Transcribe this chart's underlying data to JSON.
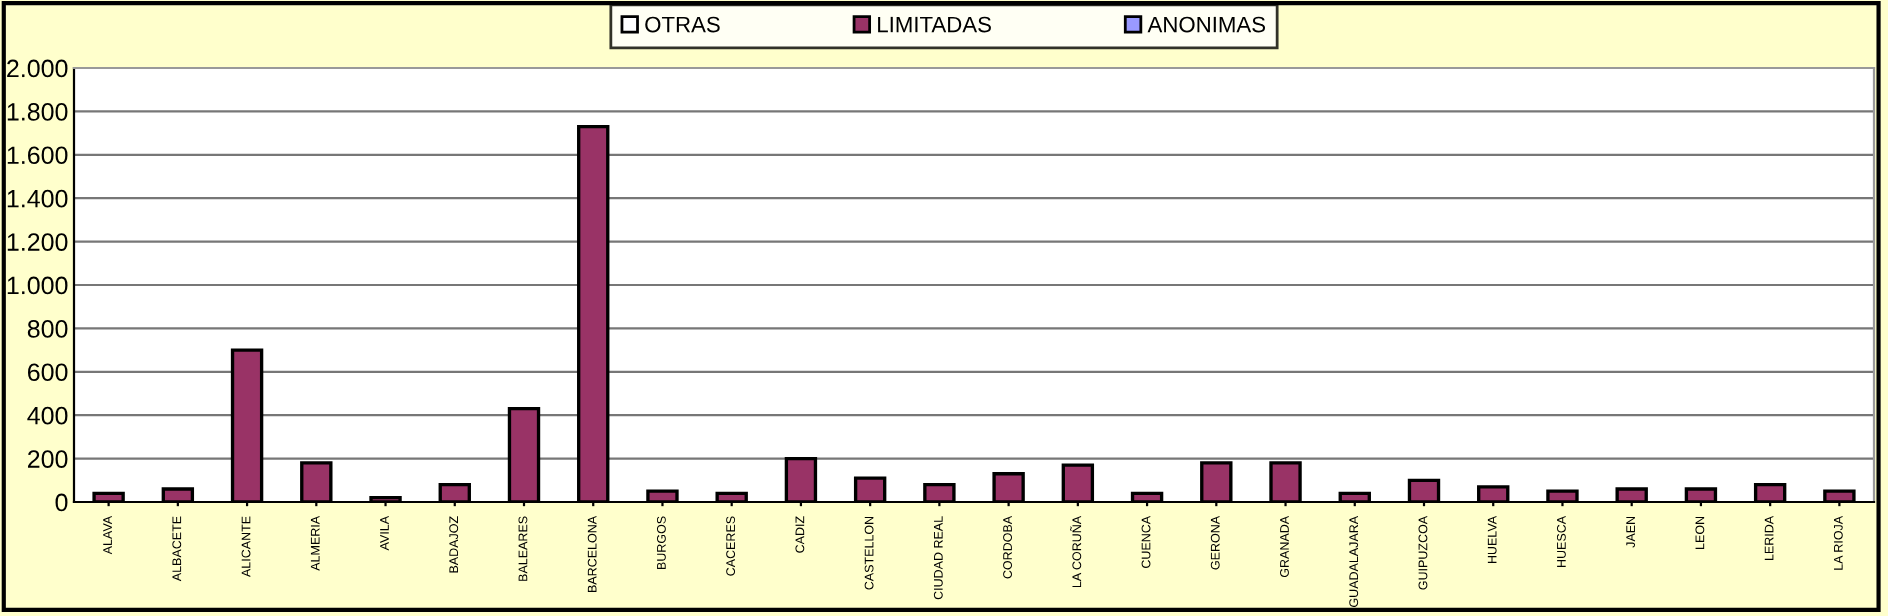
{
  "chart_data": {
    "type": "bar",
    "categories": [
      "ALAVA",
      "ALBACETE",
      "ALICANTE",
      "ALMERIA",
      "AVILA",
      "BADAJOZ",
      "BALEARES",
      "BARCELONA",
      "BURGOS",
      "CACERES",
      "CADIZ",
      "CASTELLON",
      "CIUDAD REAL",
      "CORDOBA",
      "LA CORUÑA",
      "CUENCA",
      "GERONA",
      "GRANADA",
      "GUADALAJARA",
      "GUIPUZCOA",
      "HUELVA",
      "HUESCA",
      "JAEN",
      "LEON",
      "LERIDA",
      "LA RIOJA"
    ],
    "series": [
      {
        "name": "ANONIMAS",
        "color": "#9999ff",
        "values": [
          null,
          null,
          null,
          null,
          null,
          null,
          null,
          null,
          null,
          null,
          null,
          null,
          null,
          null,
          null,
          null,
          null,
          null,
          null,
          null,
          null,
          null,
          null,
          null,
          null,
          null
        ]
      },
      {
        "name": "LIMITADAS",
        "color": "#993366",
        "values": [
          40,
          60,
          700,
          180,
          20,
          80,
          430,
          1730,
          50,
          40,
          200,
          110,
          80,
          130,
          170,
          40,
          180,
          180,
          40,
          100,
          70,
          50,
          60,
          60,
          80,
          50
        ]
      },
      {
        "name": "OTRAS",
        "color": "#ffffff",
        "values": [
          null,
          null,
          null,
          null,
          null,
          null,
          null,
          null,
          null,
          null,
          null,
          null,
          null,
          null,
          null,
          null,
          null,
          null,
          null,
          null,
          null,
          null,
          null,
          null,
          null,
          null
        ]
      }
    ],
    "ylim": [
      0,
      2000
    ],
    "yticks": [
      {
        "value": 0,
        "label": "0"
      },
      {
        "value": 200,
        "label": "200"
      },
      {
        "value": 400,
        "label": "400"
      },
      {
        "value": 600,
        "label": "600"
      },
      {
        "value": 800,
        "label": "800"
      },
      {
        "value": 1000,
        "label": "1.000"
      },
      {
        "value": 1200,
        "label": "1.200"
      },
      {
        "value": 1400,
        "label": "1.400"
      },
      {
        "value": 1600,
        "label": "1.600"
      },
      {
        "value": 1800,
        "label": "1.800"
      },
      {
        "value": 2000,
        "label": "2.000"
      }
    ],
    "grid": "y",
    "legend": "top"
  }
}
